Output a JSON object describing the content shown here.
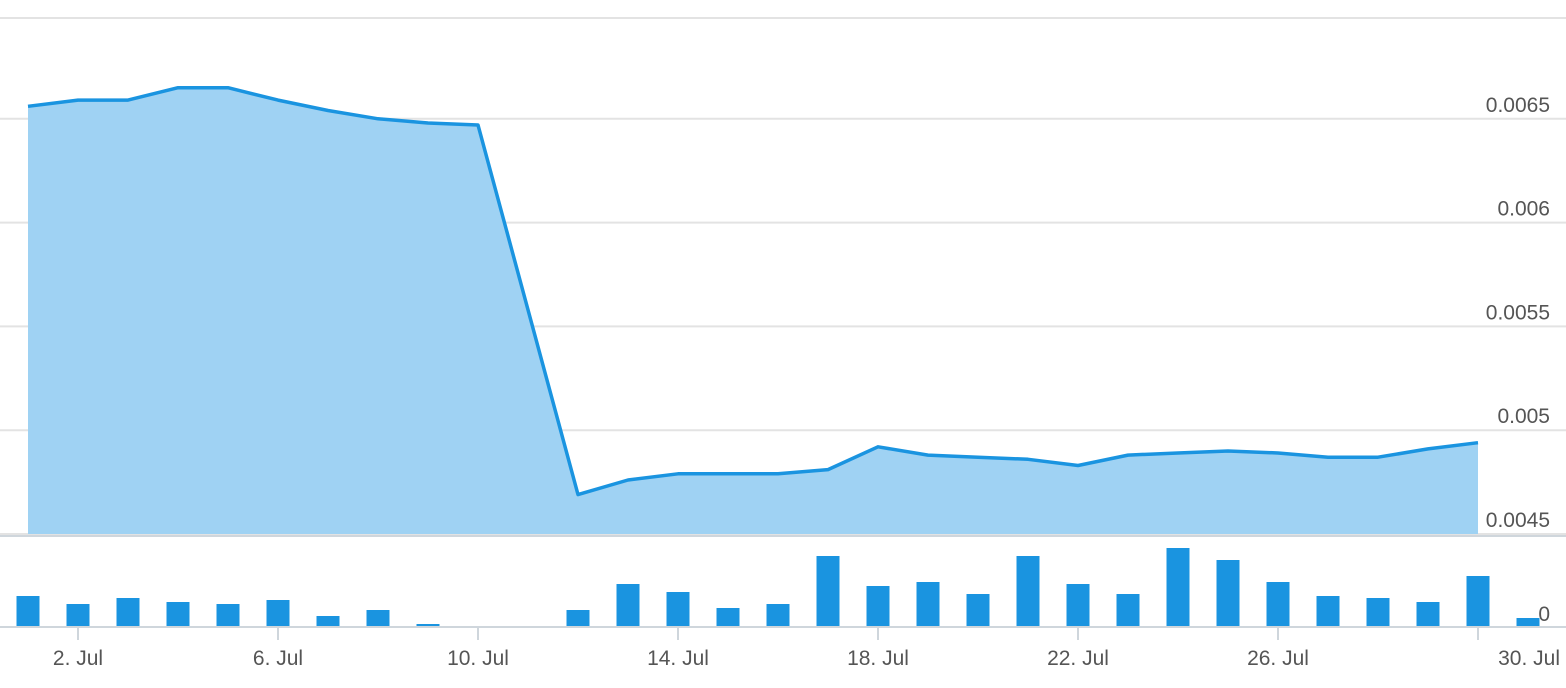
{
  "chart_data": [
    {
      "type": "area",
      "title": "",
      "xlabel": "",
      "ylabel": "",
      "ylim": [
        0.0045,
        0.007
      ],
      "y_ticks": [
        "0.0045",
        "0.005",
        "0.0055",
        "0.006",
        "0.0065"
      ],
      "y_tick_values": [
        0.0045,
        0.005,
        0.0055,
        0.006,
        0.0065
      ],
      "grid": true,
      "color": "#1a94e0",
      "fill_color": "#9fd2f3",
      "x": [
        "2024-07-01",
        "2024-07-02",
        "2024-07-03",
        "2024-07-04",
        "2024-07-05",
        "2024-07-06",
        "2024-07-07",
        "2024-07-08",
        "2024-07-09",
        "2024-07-10",
        "2024-07-12",
        "2024-07-13",
        "2024-07-14",
        "2024-07-15",
        "2024-07-16",
        "2024-07-17",
        "2024-07-18",
        "2024-07-19",
        "2024-07-20",
        "2024-07-21",
        "2024-07-22",
        "2024-07-23",
        "2024-07-24",
        "2024-07-25",
        "2024-07-26",
        "2024-07-27",
        "2024-07-28",
        "2024-07-29",
        "2024-07-30"
      ],
      "values": [
        0.00656,
        0.00659,
        0.00659,
        0.00665,
        0.00665,
        0.00659,
        0.00654,
        0.0065,
        0.00648,
        0.00647,
        0.00469,
        0.00476,
        0.00479,
        0.00479,
        0.00479,
        0.00481,
        0.00492,
        0.00488,
        0.00487,
        0.00486,
        0.00483,
        0.00488,
        0.00489,
        0.0049,
        0.00489,
        0.00487,
        0.00487,
        0.00491,
        0.00494
      ]
    },
    {
      "type": "bar",
      "title": "",
      "y_ticks": [
        "0"
      ],
      "color": "#1a94e0",
      "x": [
        "2024-07-01",
        "2024-07-02",
        "2024-07-03",
        "2024-07-04",
        "2024-07-05",
        "2024-07-06",
        "2024-07-07",
        "2024-07-08",
        "2024-07-09",
        "2024-07-10",
        "2024-07-11",
        "2024-07-12",
        "2024-07-13",
        "2024-07-14",
        "2024-07-15",
        "2024-07-16",
        "2024-07-17",
        "2024-07-18",
        "2024-07-19",
        "2024-07-20",
        "2024-07-21",
        "2024-07-22",
        "2024-07-23",
        "2024-07-24",
        "2024-07-25",
        "2024-07-26",
        "2024-07-27",
        "2024-07-28",
        "2024-07-29",
        "2024-07-30",
        "2024-07-31"
      ],
      "values": [
        30,
        22,
        28,
        24,
        22,
        26,
        10,
        16,
        2,
        0,
        0,
        16,
        42,
        34,
        18,
        22,
        70,
        40,
        44,
        32,
        70,
        42,
        32,
        78,
        66,
        44,
        30,
        28,
        24,
        50,
        8
      ],
      "ylim": [
        0,
        80
      ]
    }
  ],
  "x_axis": {
    "ticks": [
      {
        "label": "2. Jul",
        "date": "2024-07-02"
      },
      {
        "label": "6. Jul",
        "date": "2024-07-06"
      },
      {
        "label": "10. Jul",
        "date": "2024-07-10"
      },
      {
        "label": "14. Jul",
        "date": "2024-07-14"
      },
      {
        "label": "18. Jul",
        "date": "2024-07-18"
      },
      {
        "label": "22. Jul",
        "date": "2024-07-22"
      },
      {
        "label": "26. Jul",
        "date": "2024-07-26"
      },
      {
        "label": "30. Jul",
        "date": "2024-07-30"
      }
    ],
    "range": [
      "2024-07-01",
      "2024-07-31"
    ]
  }
}
